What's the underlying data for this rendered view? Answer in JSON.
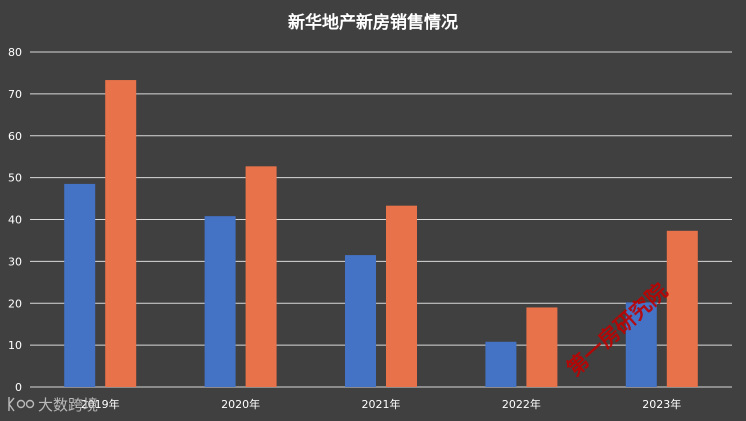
{
  "chart_data": {
    "type": "bar",
    "title": "新华地产新房销售情况",
    "categories": [
      "2019年",
      "2020年",
      "2021年",
      "2022年",
      "2023年"
    ],
    "series": [
      {
        "values": [
          48.5,
          40.8,
          31.5,
          10.8,
          20.2
        ],
        "color": "#4472c4"
      },
      {
        "values": [
          73.3,
          52.7,
          43.3,
          19.0,
          37.3
        ],
        "color": "#e8734a"
      }
    ],
    "yticks": [
      "0",
      "10",
      "20",
      "30",
      "40",
      "50",
      "60",
      "70",
      "80"
    ],
    "ylim": [
      0,
      80
    ],
    "grid": true,
    "legend": "none"
  },
  "watermarks": {
    "diagonal": "第一房研究院",
    "brand": "大数跨境"
  },
  "colors": {
    "background": "#404040",
    "gridline": "#d9d9d9",
    "text": "#ffffff",
    "watermark": "#c00000"
  }
}
